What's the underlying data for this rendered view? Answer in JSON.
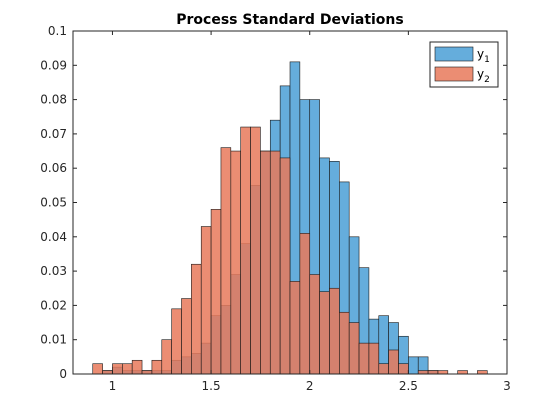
{
  "chart_data": {
    "type": "bar",
    "title": "Process Standard Deviations",
    "xlabel": "",
    "ylabel": "",
    "xlim": [
      0.8,
      3.0
    ],
    "ylim": [
      0,
      0.1
    ],
    "xticks": [
      {
        "value": 1,
        "label": "1"
      },
      {
        "value": 1.5,
        "label": "1.5"
      },
      {
        "value": 2,
        "label": "2"
      },
      {
        "value": 2.5,
        "label": "2.5"
      },
      {
        "value": 3,
        "label": "3"
      }
    ],
    "yticks": [
      {
        "value": 0,
        "label": "0"
      },
      {
        "value": 0.01,
        "label": "0.01"
      },
      {
        "value": 0.02,
        "label": "0.02"
      },
      {
        "value": 0.03,
        "label": "0.03"
      },
      {
        "value": 0.04,
        "label": "0.04"
      },
      {
        "value": 0.05,
        "label": "0.05"
      },
      {
        "value": 0.06,
        "label": "0.06"
      },
      {
        "value": 0.07,
        "label": "0.07"
      },
      {
        "value": 0.08,
        "label": "0.08"
      },
      {
        "value": 0.09,
        "label": "0.09"
      },
      {
        "value": 0.1,
        "label": "0.1"
      }
    ],
    "grid": false,
    "legend": "top-right",
    "bin_width": 0.05,
    "series": [
      {
        "name": "y",
        "subscript": "1",
        "color": "#4a9fd6",
        "opacity": 0.85,
        "bin_starts": [
          0.95,
          1.0,
          1.05,
          1.1,
          1.15,
          1.2,
          1.25,
          1.3,
          1.35,
          1.4,
          1.45,
          1.5,
          1.55,
          1.6,
          1.65,
          1.7,
          1.75,
          1.8,
          1.85,
          1.9,
          1.95,
          2.0,
          2.05,
          2.1,
          2.15,
          2.2,
          2.25,
          2.3,
          2.35,
          2.4,
          2.45,
          2.5,
          2.55,
          2.6
        ],
        "values": [
          0.001,
          0.002,
          0.001,
          0.001,
          0.001,
          0.001,
          0.001,
          0.004,
          0.005,
          0.006,
          0.009,
          0.017,
          0.02,
          0.029,
          0.038,
          0.055,
          0.065,
          0.074,
          0.084,
          0.091,
          0.08,
          0.08,
          0.063,
          0.062,
          0.056,
          0.04,
          0.031,
          0.016,
          0.017,
          0.015,
          0.011,
          0.005,
          0.005,
          0.001
        ]
      },
      {
        "name": "y",
        "subscript": "2",
        "color": "#e8795a",
        "opacity": 0.85,
        "bin_starts": [
          0.9,
          0.95,
          1.0,
          1.05,
          1.1,
          1.15,
          1.2,
          1.25,
          1.3,
          1.35,
          1.4,
          1.45,
          1.5,
          1.55,
          1.6,
          1.65,
          1.7,
          1.75,
          1.8,
          1.85,
          1.9,
          1.95,
          2.0,
          2.05,
          2.1,
          2.15,
          2.2,
          2.25,
          2.3,
          2.35,
          2.4,
          2.45,
          2.55,
          2.6,
          2.65,
          2.75,
          2.85
        ],
        "values": [
          0.003,
          0.001,
          0.003,
          0.003,
          0.004,
          0.001,
          0.004,
          0.01,
          0.019,
          0.022,
          0.032,
          0.043,
          0.048,
          0.066,
          0.065,
          0.072,
          0.072,
          0.065,
          0.065,
          0.063,
          0.027,
          0.041,
          0.029,
          0.024,
          0.025,
          0.018,
          0.015,
          0.009,
          0.009,
          0.003,
          0.007,
          0.003,
          0.001,
          0.001,
          0.001,
          0.001,
          0.001
        ]
      }
    ]
  }
}
